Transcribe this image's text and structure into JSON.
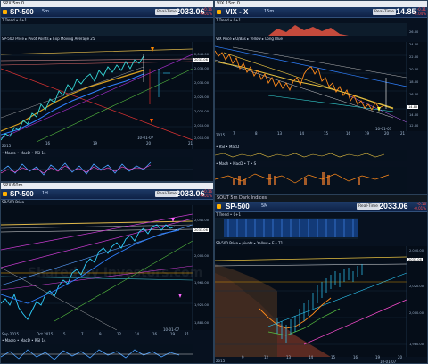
{
  "panes": {
    "tl": {
      "window_title": "SPX 5m 0",
      "symbol": "SP-500",
      "timeframe": "5m",
      "price": "2033.06",
      "change": "-0.16\n-0.01%",
      "button": "Real-Time",
      "strip1": "T  Trend  • 0+1",
      "strip2": "SP-500 Price  ▸  Pivot Points  ▸  Exp Moving Average 25",
      "strip3": "• Macro  • MacD  • RSI 14",
      "x_ticks": [
        "2015",
        "16",
        "19",
        "20",
        "21"
      ],
      "date": "10-01-07",
      "y_ticks": [
        "2,040.00",
        "2,035.00",
        "2,030.00",
        "2,025.00",
        "2,020.00",
        "2,015.00",
        "2,010.00"
      ]
    },
    "tr": {
      "window_title": "VIX 15m 0",
      "symbol": "VIX - X",
      "timeframe": "15m",
      "price": "14.85",
      "change": "-0.31\n-2.04%",
      "button": "Real-Time",
      "strip1": "T  Trend  • 0+1",
      "strip2": "VIX Price  ▸  U/Bas  ▸  Yellow  ▸  Long Blue",
      "strip3": "• RSI  • MacD",
      "strip4": "• Mach  • MacD  • T  • S",
      "x_ticks": [
        "2015",
        "7",
        "8",
        "13",
        "14",
        "15",
        "16",
        "19",
        "20",
        "21"
      ],
      "date": "10-01-07",
      "y_ticks": [
        "26.00",
        "24.00",
        "22.00",
        "20.00",
        "18.00",
        "16.00",
        "14.00",
        "12.00"
      ]
    },
    "bl": {
      "window_title": "SPX 60m",
      "symbol": "SP-500",
      "timeframe": "1H",
      "price": "2033.06",
      "change": "-0.16\n-0.01%",
      "button": "Real-Time",
      "strip1": "SP-500 Price",
      "strip2": "• Macro  • MacD  • RSI 14",
      "x_ticks": [
        "Sep 2015",
        "Oct 2015",
        "5",
        "7",
        "9",
        "12",
        "14",
        "16",
        "19",
        "21"
      ],
      "date": "10-01-07",
      "y_ticks": [
        "2,040.00",
        "2,000.00",
        "1,960.00",
        "1,920.00",
        "1,880.00"
      ],
      "watermark": "Shared by Investors.com"
    },
    "br": {
      "window_title": "SOUT 5m  Dark Indices",
      "symbol": "SP-500",
      "timeframe": "5M",
      "price": "2033.06",
      "change": "-0.16\n-0.01%",
      "button": "Real-Time",
      "strip1": "T  Trend  • 0+1",
      "strip2": "SP-500 Price  ▸  pivots  ▸  Yellow  ▸  E  ▸  T1",
      "x_ticks": [
        "2015",
        "9",
        "12",
        "13",
        "14",
        "15",
        "16",
        "19",
        "20"
      ],
      "date": "10-01-07",
      "y_ticks": [
        "2,040.00",
        "2,020.00",
        "2,000.00",
        "1,980.00"
      ]
    }
  }
}
